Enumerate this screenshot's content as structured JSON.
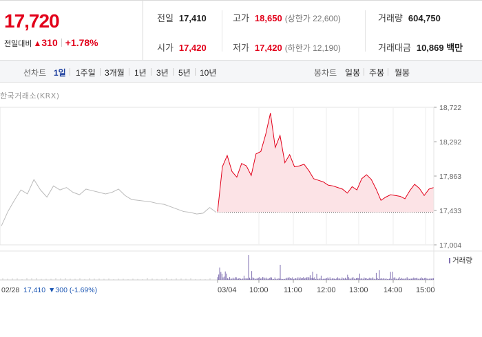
{
  "quote": {
    "price": "17,720",
    "change_label": "전일대비",
    "change_arrow": "▲",
    "change_amount": "310",
    "change_pct": "+1.78%",
    "prev_close": {
      "label": "전일",
      "value": "17,410"
    },
    "open": {
      "label": "시가",
      "value": "17,420"
    },
    "high": {
      "label": "고가",
      "value": "18,650",
      "limit_label": "(상한가 22,600)"
    },
    "low": {
      "label": "저가",
      "value": "17,420",
      "limit_label": "(하한가 12,190)"
    },
    "volume": {
      "label": "거래량",
      "value": "604,750"
    },
    "turnover": {
      "label": "거래대금",
      "value": "10,869 백만"
    },
    "up_color": "#e2001a"
  },
  "tabs": {
    "line_label": "선차트",
    "line_items": [
      "1일",
      "1주일",
      "3개월",
      "1년",
      "3년",
      "5년",
      "10년"
    ],
    "line_active": "1일",
    "candle_label": "봉차트",
    "candle_items": [
      "일봉",
      "주봉",
      "월봉"
    ]
  },
  "source_label": "한국거래소(KRX)",
  "chart_data": {
    "type": "line",
    "y_ticks": [
      "18,722",
      "18,292",
      "17,863",
      "17,433",
      "17,004"
    ],
    "ylim": [
      17004,
      18722
    ],
    "x_ticks": [
      "03/04",
      "10:00",
      "11:00",
      "12:00",
      "13:00",
      "14:00",
      "15:00"
    ],
    "reference_price": 17410,
    "volume_legend": "거래량",
    "prev_day": {
      "date": "02/28",
      "close_label": "17,410",
      "change_label": "▼300 (-1.69%)",
      "color": "#bbbbbb",
      "values": [
        17240,
        17420,
        17560,
        17690,
        17640,
        17820,
        17690,
        17600,
        17740,
        17690,
        17720,
        17660,
        17630,
        17700,
        17680,
        17660,
        17640,
        17660,
        17700,
        17620,
        17570,
        17560,
        17550,
        17540,
        17520,
        17510,
        17480,
        17450,
        17420,
        17410,
        17390,
        17400,
        17470,
        17410
      ]
    },
    "today": {
      "color": "#e2001a",
      "fill": "#fce3e6",
      "times": [
        "09:00",
        "09:05",
        "09:10",
        "09:15",
        "09:20",
        "09:25",
        "09:30",
        "09:35",
        "09:40",
        "09:45",
        "09:50",
        "09:55",
        "10:00",
        "10:10",
        "10:20",
        "10:30",
        "10:40",
        "10:50",
        "11:00",
        "11:10",
        "11:20",
        "11:30",
        "11:40",
        "11:50",
        "12:00",
        "12:10",
        "12:20",
        "12:30",
        "12:40",
        "12:50",
        "13:00",
        "13:10",
        "13:20",
        "13:30",
        "13:40",
        "13:50",
        "14:00",
        "14:10",
        "14:20",
        "14:30",
        "14:40",
        "14:50",
        "15:00",
        "15:10",
        "15:20",
        "15:30"
      ],
      "values": [
        17420,
        17980,
        18120,
        17920,
        17850,
        18020,
        17990,
        17870,
        18140,
        18170,
        18380,
        18650,
        18220,
        18370,
        18030,
        18130,
        17980,
        17990,
        18010,
        17930,
        17830,
        17810,
        17790,
        17750,
        17740,
        17720,
        17700,
        17650,
        17730,
        17690,
        17830,
        17880,
        17820,
        17700,
        17560,
        17600,
        17630,
        17620,
        17610,
        17580,
        17680,
        17760,
        17710,
        17620,
        17700,
        17720
      ]
    },
    "volume_color": "#7f6fb0"
  }
}
